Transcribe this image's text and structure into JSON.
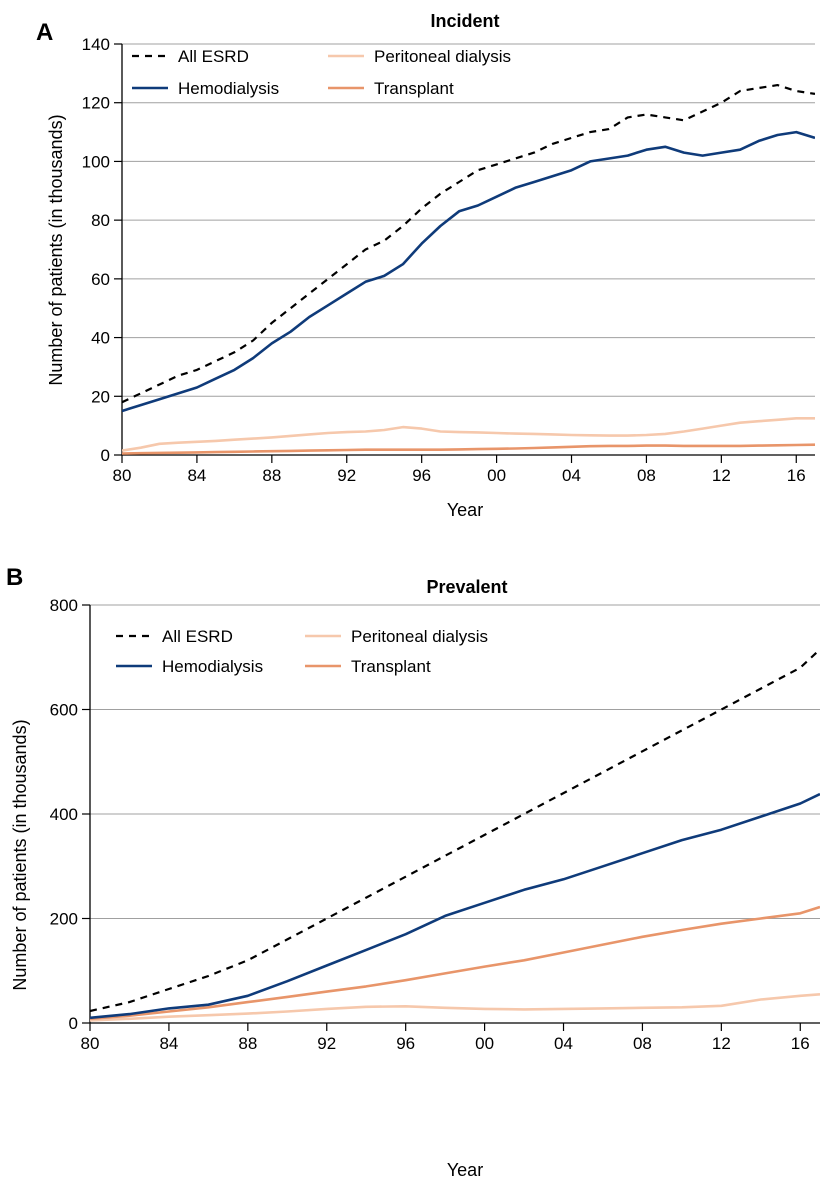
{
  "chart_data": [
    {
      "panel": "A",
      "type": "line",
      "title": "Incident",
      "xlabel": "Year",
      "ylabel": "Number of patients (in thousands)",
      "ylim": [
        0,
        140
      ],
      "xlim": [
        1980,
        2017
      ],
      "y_ticks": [
        0,
        20,
        40,
        60,
        80,
        100,
        120,
        140
      ],
      "x_tick_values": [
        1980,
        1984,
        1988,
        1992,
        1996,
        2000,
        2004,
        2008,
        2012,
        2016
      ],
      "x_tick_labels": [
        "80",
        "84",
        "88",
        "92",
        "96",
        "00",
        "04",
        "08",
        "12",
        "16"
      ],
      "grid": "horizontal",
      "legend": "top-left",
      "x": [
        1980,
        1981,
        1982,
        1983,
        1984,
        1985,
        1986,
        1987,
        1988,
        1989,
        1990,
        1991,
        1992,
        1993,
        1994,
        1995,
        1996,
        1997,
        1998,
        1999,
        2000,
        2001,
        2002,
        2003,
        2004,
        2005,
        2006,
        2007,
        2008,
        2009,
        2010,
        2011,
        2012,
        2013,
        2014,
        2015,
        2016,
        2017
      ],
      "series": [
        {
          "name": "All ESRD",
          "color": "#000000",
          "style": "dashed",
          "values": [
            18,
            21,
            24,
            27,
            29,
            32,
            35,
            39,
            45,
            50,
            55,
            60,
            65,
            70,
            73,
            78,
            84,
            89,
            93,
            97,
            99,
            101,
            103,
            106,
            108,
            110,
            111,
            115,
            116,
            115,
            114,
            117,
            120,
            124,
            125,
            126,
            124,
            123
          ]
        },
        {
          "name": "Hemodialysis",
          "color": "#0f3b7a",
          "style": "solid",
          "values": [
            15,
            17,
            19,
            21,
            23,
            26,
            29,
            33,
            38,
            42,
            47,
            51,
            55,
            59,
            61,
            65,
            72,
            78,
            83,
            85,
            88,
            91,
            93,
            95,
            97,
            100,
            101,
            102,
            104,
            105,
            103,
            102,
            103,
            104,
            107,
            109,
            110,
            108
          ]
        },
        {
          "name": "Peritoneal dialysis",
          "color": "#f6c8ac",
          "style": "solid",
          "values": [
            1.5,
            2.5,
            3.8,
            4.2,
            4.5,
            4.8,
            5.2,
            5.6,
            6,
            6.5,
            7,
            7.5,
            7.8,
            8,
            8.5,
            9.5,
            9,
            8,
            7.8,
            7.7,
            7.5,
            7.3,
            7.2,
            7,
            6.8,
            6.7,
            6.6,
            6.6,
            6.8,
            7.2,
            8,
            9,
            10,
            11,
            11.5,
            12,
            12.5,
            12.5
          ]
        },
        {
          "name": "Transplant",
          "color": "#e8956a",
          "style": "solid",
          "values": [
            0.5,
            0.6,
            0.7,
            0.8,
            0.9,
            1,
            1.1,
            1.2,
            1.3,
            1.4,
            1.5,
            1.6,
            1.7,
            1.8,
            1.8,
            1.8,
            1.8,
            1.8,
            1.9,
            2,
            2.1,
            2.2,
            2.4,
            2.6,
            2.8,
            3,
            3.1,
            3.1,
            3.2,
            3.2,
            3.1,
            3.1,
            3.1,
            3.1,
            3.2,
            3.3,
            3.4,
            3.5
          ]
        }
      ]
    },
    {
      "panel": "B",
      "type": "line",
      "title": "Prevalent",
      "xlabel": "Year",
      "ylabel": "Number of patients (in thousands)",
      "ylim": [
        0,
        800
      ],
      "xlim": [
        1980,
        2017
      ],
      "y_ticks": [
        0,
        200,
        400,
        600,
        800
      ],
      "x_tick_values": [
        1980,
        1984,
        1988,
        1992,
        1996,
        2000,
        2004,
        2008,
        2012,
        2016
      ],
      "x_tick_labels": [
        "80",
        "84",
        "88",
        "92",
        "96",
        "00",
        "04",
        "08",
        "12",
        "16"
      ],
      "grid": "horizontal",
      "legend": "top-left",
      "x": [
        1980,
        1982,
        1984,
        1986,
        1988,
        1990,
        1992,
        1994,
        1996,
        1998,
        2000,
        2002,
        2004,
        2006,
        2008,
        2010,
        2012,
        2014,
        2016,
        2017
      ],
      "series": [
        {
          "name": "All ESRD",
          "color": "#000000",
          "style": "dashed",
          "values": [
            23,
            40,
            65,
            90,
            120,
            160,
            200,
            240,
            280,
            320,
            360,
            400,
            440,
            480,
            520,
            560,
            600,
            640,
            680,
            715
          ]
        },
        {
          "name": "Hemodialysis",
          "color": "#0f3b7a",
          "style": "solid",
          "values": [
            10,
            17,
            28,
            35,
            52,
            80,
            110,
            140,
            170,
            205,
            230,
            255,
            275,
            300,
            325,
            350,
            370,
            395,
            420,
            438
          ]
        },
        {
          "name": "Peritoneal dialysis",
          "color": "#f6c8ac",
          "style": "solid",
          "values": [
            5,
            8,
            12,
            15,
            18,
            22,
            27,
            31,
            32,
            29,
            27,
            26,
            27,
            28,
            29,
            30,
            33,
            45,
            52,
            55
          ]
        },
        {
          "name": "Transplant",
          "color": "#e8956a",
          "style": "solid",
          "values": [
            8,
            14,
            22,
            30,
            40,
            50,
            60,
            70,
            82,
            95,
            108,
            120,
            135,
            150,
            165,
            178,
            190,
            200,
            210,
            222
          ]
        }
      ]
    }
  ]
}
